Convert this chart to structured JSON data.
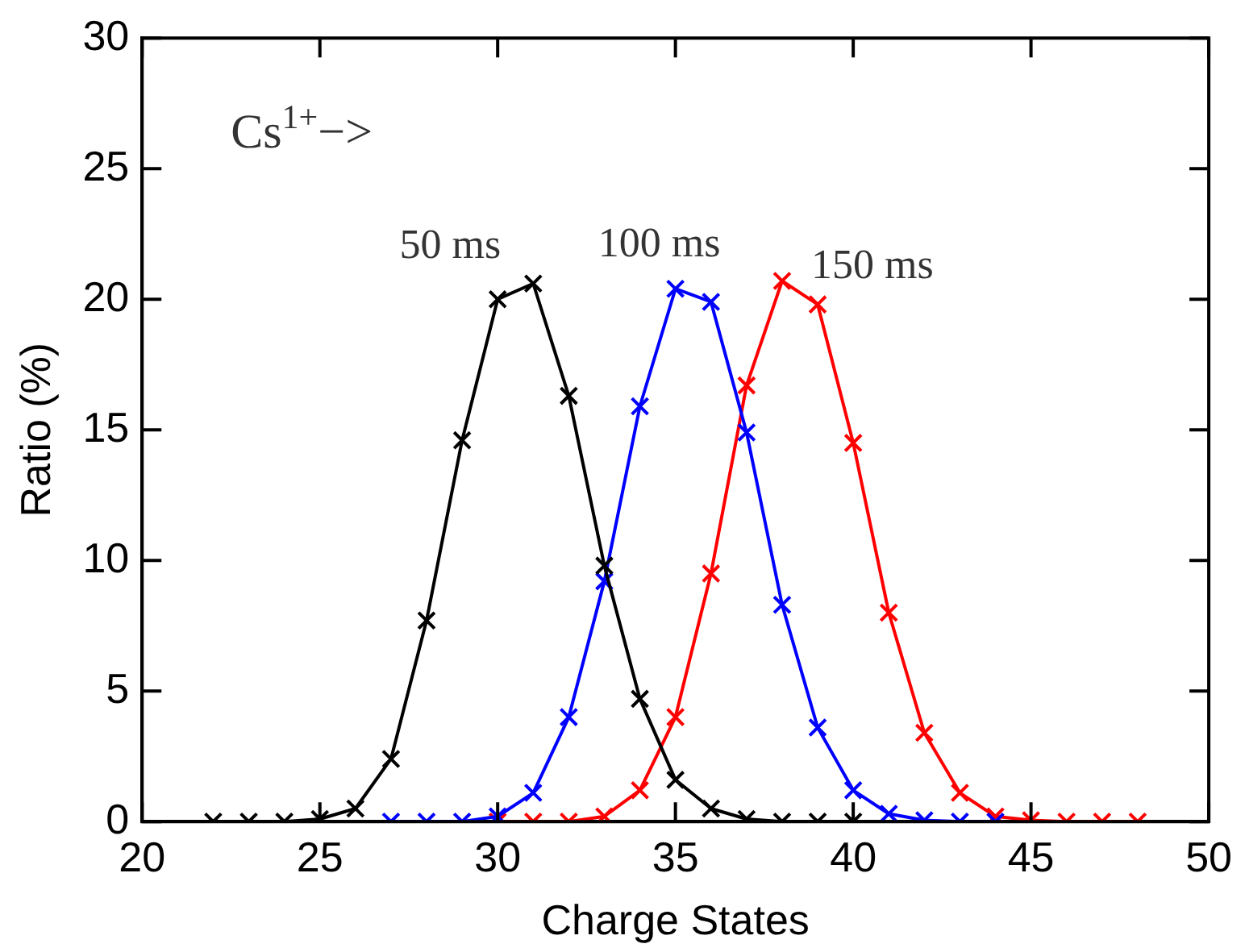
{
  "chart_data": {
    "type": "line",
    "xlabel": "Charge States",
    "ylabel": "Ratio (%)",
    "annotations": [
      "Cs$^{1+}$−>"
    ],
    "xlim": [
      20,
      50
    ],
    "xticks": [
      20,
      25,
      30,
      35,
      40,
      45,
      50
    ],
    "ylim": [
      0,
      30
    ],
    "yticks": [
      0,
      5,
      10,
      15,
      20,
      25,
      30
    ],
    "grid": false,
    "legend": false,
    "marker": "cross",
    "line_style": "solid",
    "series": [
      {
        "name": "50 ms",
        "color": "#000000",
        "x": [
          22,
          23,
          24,
          25,
          26,
          27,
          28,
          29,
          30,
          31,
          32,
          33,
          34,
          35,
          36,
          37,
          38,
          39,
          40
        ],
        "values": [
          0,
          0,
          0,
          0.1,
          0.5,
          2.4,
          7.7,
          14.6,
          20.0,
          20.6,
          16.3,
          9.8,
          4.7,
          1.6,
          0.5,
          0.1,
          0,
          0,
          0
        ]
      },
      {
        "name": "100 ms",
        "color": "#0000ff",
        "x": [
          27,
          28,
          29,
          30,
          31,
          32,
          33,
          34,
          35,
          36,
          37,
          38,
          39,
          40,
          41,
          42,
          43,
          44
        ],
        "values": [
          0,
          0,
          0,
          0.2,
          1.1,
          4.0,
          9.2,
          15.9,
          20.4,
          19.9,
          14.9,
          8.3,
          3.6,
          1.2,
          0.3,
          0.05,
          0,
          0
        ]
      },
      {
        "name": "150 ms",
        "color": "#ff0000",
        "x": [
          30,
          31,
          32,
          33,
          34,
          35,
          36,
          37,
          38,
          39,
          40,
          41,
          42,
          43,
          44,
          45,
          46,
          47,
          48
        ],
        "values": [
          0,
          0,
          0,
          0.2,
          1.2,
          4.0,
          9.5,
          16.7,
          20.7,
          19.8,
          14.5,
          8.0,
          3.4,
          1.1,
          0.2,
          0.05,
          0,
          0,
          0
        ]
      }
    ]
  }
}
